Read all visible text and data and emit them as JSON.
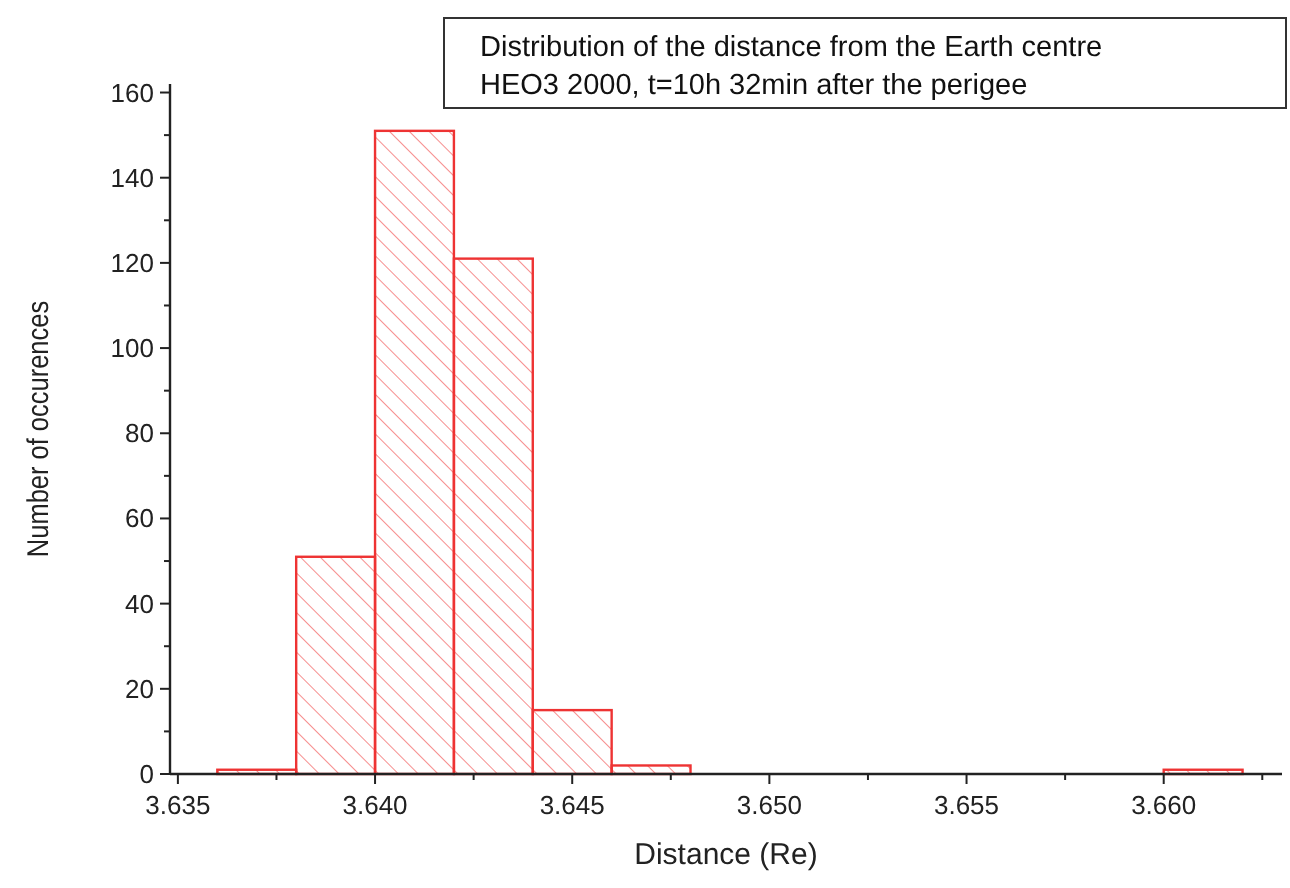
{
  "chart_data": {
    "type": "histogram",
    "title": "Distribution of the distance from the Earth centre",
    "subtitle": "HEO3 2000, t=10h 32min after the perigee",
    "xlabel": "Distance (Re)",
    "ylabel": "Number of occurences",
    "bins": [
      3.636,
      3.638,
      3.64,
      3.642,
      3.644,
      3.646,
      3.648,
      3.65,
      3.652,
      3.654,
      3.656,
      3.658,
      3.66,
      3.662
    ],
    "values": [
      1,
      51,
      151,
      121,
      15,
      2,
      0,
      0,
      0,
      0,
      0,
      0,
      1
    ],
    "color": "#ee3333",
    "xlim": [
      3.6348,
      3.663
    ],
    "xticks": [
      {
        "value": 3.635,
        "label": "3.635"
      },
      {
        "value": 3.64,
        "label": "3.640"
      },
      {
        "value": 3.645,
        "label": "3.645"
      },
      {
        "value": 3.65,
        "label": "3.650"
      },
      {
        "value": 3.655,
        "label": "3.655"
      },
      {
        "value": 3.66,
        "label": "3.660"
      }
    ],
    "ylim": [
      0,
      162
    ],
    "yticks": [
      0,
      20,
      40,
      60,
      80,
      100,
      120,
      140,
      160
    ],
    "grid": false
  }
}
